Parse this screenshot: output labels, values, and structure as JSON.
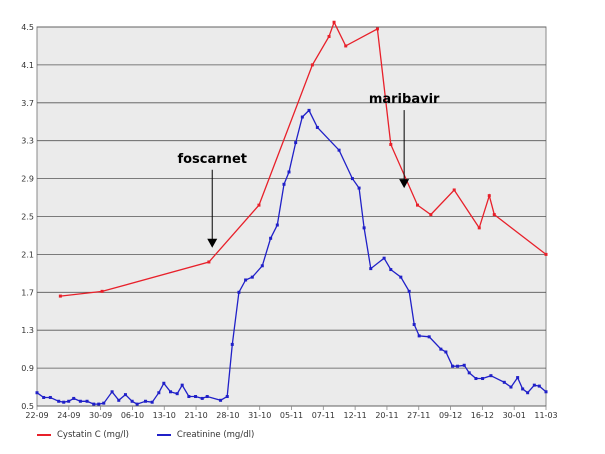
{
  "chart_data": {
    "type": "line",
    "ylim": [
      0.5,
      4.5
    ],
    "yticks": [
      "0.5",
      "0.9",
      "1.3",
      "1.7",
      "2.1",
      "2.5",
      "2.9",
      "3.3",
      "3.7",
      "4.1",
      "4.5"
    ],
    "xticks": [
      "22-09",
      "24-09",
      "30-09",
      "06-10",
      "13-10",
      "21-10",
      "28-10",
      "31-10",
      "05-11",
      "07-11",
      "12-11",
      "20-11",
      "27-11",
      "09-12",
      "16-12",
      "30-01",
      "11-03"
    ],
    "grid": true,
    "legend_position": "bottom-left",
    "series": [
      {
        "name": "Cystatin C (mg/l)",
        "color": "#e8202a",
        "points": [
          [
            1.4,
            1.66
          ],
          [
            3.9,
            1.71
          ],
          [
            10.3,
            2.02
          ],
          [
            13.3,
            2.62
          ],
          [
            16.5,
            4.1
          ],
          [
            17.5,
            4.4
          ],
          [
            17.8,
            4.55
          ],
          [
            18.5,
            4.3
          ],
          [
            20.4,
            4.48
          ],
          [
            21.2,
            3.26
          ],
          [
            22.8,
            2.62
          ],
          [
            23.6,
            2.52
          ],
          [
            25.0,
            2.78
          ],
          [
            26.5,
            2.38
          ],
          [
            27.1,
            2.72
          ],
          [
            27.4,
            2.52
          ],
          [
            30.5,
            2.1
          ]
        ]
      },
      {
        "name": "Creatinine (mg/dl)",
        "color": "#2020c8",
        "points": [
          [
            0.0,
            0.64
          ],
          [
            0.4,
            0.59
          ],
          [
            0.8,
            0.59
          ],
          [
            1.3,
            0.55
          ],
          [
            1.6,
            0.54
          ],
          [
            1.9,
            0.55
          ],
          [
            2.2,
            0.58
          ],
          [
            2.6,
            0.55
          ],
          [
            3.0,
            0.55
          ],
          [
            3.4,
            0.52
          ],
          [
            3.7,
            0.52
          ],
          [
            4.0,
            0.53
          ],
          [
            4.5,
            0.65
          ],
          [
            4.9,
            0.56
          ],
          [
            5.3,
            0.62
          ],
          [
            5.7,
            0.55
          ],
          [
            6.0,
            0.52
          ],
          [
            6.5,
            0.55
          ],
          [
            6.9,
            0.54
          ],
          [
            7.3,
            0.64
          ],
          [
            7.6,
            0.74
          ],
          [
            8.0,
            0.65
          ],
          [
            8.4,
            0.63
          ],
          [
            8.7,
            0.72
          ],
          [
            9.1,
            0.6
          ],
          [
            9.5,
            0.6
          ],
          [
            9.9,
            0.58
          ],
          [
            10.2,
            0.6
          ],
          [
            11.0,
            0.56
          ],
          [
            11.4,
            0.6
          ],
          [
            11.7,
            1.15
          ],
          [
            12.1,
            1.7
          ],
          [
            12.5,
            1.83
          ],
          [
            12.9,
            1.86
          ],
          [
            13.5,
            1.98
          ],
          [
            14.0,
            2.27
          ],
          [
            14.4,
            2.41
          ],
          [
            14.8,
            2.84
          ],
          [
            15.1,
            2.97
          ],
          [
            15.5,
            3.28
          ],
          [
            15.9,
            3.55
          ],
          [
            16.3,
            3.62
          ],
          [
            16.8,
            3.44
          ],
          [
            18.1,
            3.2
          ],
          [
            18.9,
            2.9
          ],
          [
            19.3,
            2.8
          ],
          [
            19.6,
            2.38
          ],
          [
            20.0,
            1.95
          ],
          [
            20.8,
            2.06
          ],
          [
            21.2,
            1.94
          ],
          [
            21.8,
            1.86
          ],
          [
            22.3,
            1.71
          ],
          [
            22.6,
            1.36
          ],
          [
            22.9,
            1.24
          ],
          [
            23.5,
            1.23
          ],
          [
            24.2,
            1.1
          ],
          [
            24.5,
            1.07
          ],
          [
            24.9,
            0.92
          ],
          [
            25.2,
            0.92
          ],
          [
            25.6,
            0.93
          ],
          [
            25.9,
            0.85
          ],
          [
            26.3,
            0.79
          ],
          [
            26.7,
            0.79
          ],
          [
            27.2,
            0.82
          ],
          [
            28.0,
            0.75
          ],
          [
            28.4,
            0.7
          ],
          [
            28.8,
            0.8
          ],
          [
            29.1,
            0.68
          ],
          [
            29.4,
            0.64
          ],
          [
            29.8,
            0.72
          ],
          [
            30.1,
            0.71
          ],
          [
            30.5,
            0.65
          ]
        ]
      }
    ],
    "annotations": [
      {
        "text": "foscarnet",
        "point": [
          10.5,
          2.17
        ]
      },
      {
        "text": "maribavir",
        "point": [
          22.0,
          2.8
        ]
      }
    ]
  }
}
